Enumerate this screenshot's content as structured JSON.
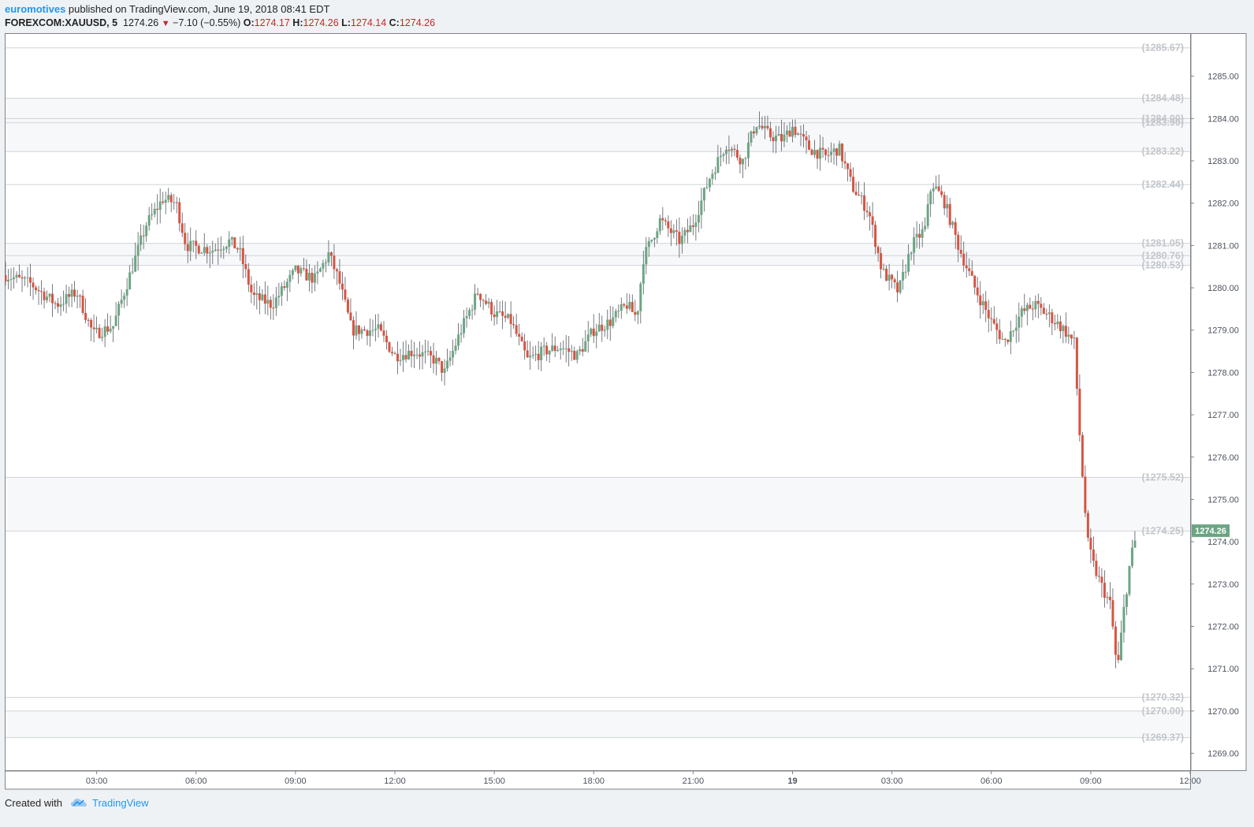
{
  "header": {
    "user": "euromotives",
    "published_text": " published on TradingView.com, June 19, 2018 08:41 EDT"
  },
  "legend": {
    "symbol": "FOREXCOM:XAUUSD, 5",
    "last": "1274.26",
    "change": "−7.10 (−0.55%)",
    "o_label": "O:",
    "o": "1274.17",
    "h_label": "H:",
    "h": "1274.26",
    "l_label": "L:",
    "l": "1274.14",
    "c_label": "C:",
    "c": "1274.26"
  },
  "footer": {
    "created_with": "Created with",
    "brand": "TradingView"
  },
  "colors": {
    "up": "#6ba583",
    "down": "#d75442",
    "accent": "#2196f3",
    "level_line": "#cfd3d7",
    "last_price_bg": "#6ba583"
  },
  "chart_data": {
    "type": "candlestick",
    "symbol": "FOREXCOM:XAUUSD",
    "timeframe": "5",
    "ylim": [
      1268.6,
      1286.0
    ],
    "y_ticks": [
      "1269.00",
      "1270.00",
      "1271.00",
      "1272.00",
      "1273.00",
      "1274.00",
      "1275.00",
      "1276.00",
      "1277.00",
      "1278.00",
      "1279.00",
      "1280.00",
      "1281.00",
      "1282.00",
      "1283.00",
      "1284.00",
      "1285.00"
    ],
    "x_ticks": [
      "03:00",
      "06:00",
      "09:00",
      "12:00",
      "15:00",
      "18:00",
      "21:00",
      "19",
      "03:00",
      "06:00",
      "09:00",
      "12:00"
    ],
    "x_tick_hours": [
      3,
      6,
      9,
      12,
      15,
      18,
      21,
      24,
      27,
      30,
      33,
      36
    ],
    "x_range_hours": [
      0.25,
      36.0
    ],
    "last_price": "1274.26",
    "levels": [
      "1285.67",
      "1284.48",
      "1284.00",
      "1283.90",
      "1283.22",
      "1282.44",
      "1281.05",
      "1280.76",
      "1280.53",
      "1275.52",
      "1274.25",
      "1270.32",
      "1270.00",
      "1269.37"
    ],
    "level_labels": [
      {
        "text": "(1285.67)",
        "value": 1285.67
      },
      {
        "text": "(1284.48)",
        "value": 1284.48
      },
      {
        "text": "(1284.00)",
        "value": 1284.0
      },
      {
        "text": "(1283.90)",
        "value": 1283.9
      },
      {
        "text": "(1283.22)",
        "value": 1283.22
      },
      {
        "text": "(1282.44)",
        "value": 1282.44
      },
      {
        "text": "(1281.05)",
        "value": 1281.05
      },
      {
        "text": "(1280.76)",
        "value": 1280.76
      },
      {
        "text": "(1280.53)",
        "value": 1280.53
      },
      {
        "text": "(1275.52)",
        "value": 1275.52
      },
      {
        "text": "(1274.25)",
        "value": 1274.25
      },
      {
        "text": "(1270.32)",
        "value": 1270.32
      },
      {
        "text": "(1270.00)",
        "value": 1270.0
      },
      {
        "text": "(1269.37)",
        "value": 1269.37
      }
    ],
    "close_path": [
      [
        0.25,
        1280.3
      ],
      [
        1.0,
        1280.1
      ],
      [
        1.8,
        1279.6
      ],
      [
        2.4,
        1279.9
      ],
      [
        2.9,
        1278.9
      ],
      [
        3.5,
        1279.1
      ],
      [
        4.0,
        1280.3
      ],
      [
        4.5,
        1281.5
      ],
      [
        5.0,
        1282.1
      ],
      [
        5.4,
        1282.0
      ],
      [
        5.7,
        1281.0
      ],
      [
        6.5,
        1280.9
      ],
      [
        7.0,
        1281.1
      ],
      [
        7.3,
        1280.9
      ],
      [
        7.7,
        1279.8
      ],
      [
        8.3,
        1279.6
      ],
      [
        9.0,
        1280.4
      ],
      [
        9.6,
        1280.2
      ],
      [
        10.0,
        1280.8
      ],
      [
        10.3,
        1280.2
      ],
      [
        10.7,
        1279.0
      ],
      [
        11.5,
        1279.0
      ],
      [
        12.0,
        1278.4
      ],
      [
        12.6,
        1278.5
      ],
      [
        13.2,
        1278.3
      ],
      [
        13.5,
        1278.0
      ],
      [
        14.0,
        1279.0
      ],
      [
        14.5,
        1279.9
      ],
      [
        15.0,
        1279.4
      ],
      [
        15.5,
        1279.2
      ],
      [
        16.0,
        1278.3
      ],
      [
        16.5,
        1278.5
      ],
      [
        17.0,
        1278.6
      ],
      [
        17.5,
        1278.4
      ],
      [
        18.0,
        1279.0
      ],
      [
        18.5,
        1279.2
      ],
      [
        19.0,
        1279.6
      ],
      [
        19.3,
        1279.3
      ],
      [
        19.5,
        1280.7
      ],
      [
        20.0,
        1281.6
      ],
      [
        20.6,
        1281.1
      ],
      [
        21.0,
        1281.5
      ],
      [
        21.5,
        1282.6
      ],
      [
        22.0,
        1283.4
      ],
      [
        22.5,
        1283.0
      ],
      [
        22.9,
        1283.9
      ],
      [
        23.3,
        1283.6
      ],
      [
        23.7,
        1283.5
      ],
      [
        24.0,
        1283.8
      ],
      [
        24.5,
        1283.3
      ],
      [
        25.0,
        1283.1
      ],
      [
        25.4,
        1283.3
      ],
      [
        25.8,
        1282.4
      ],
      [
        26.3,
        1281.8
      ],
      [
        26.7,
        1280.4
      ],
      [
        27.2,
        1279.9
      ],
      [
        27.6,
        1281.0
      ],
      [
        28.0,
        1281.4
      ],
      [
        28.2,
        1282.5
      ],
      [
        28.6,
        1282.0
      ],
      [
        29.0,
        1281.0
      ],
      [
        29.5,
        1280.0
      ],
      [
        30.0,
        1279.2
      ],
      [
        30.4,
        1278.7
      ],
      [
        30.9,
        1279.4
      ],
      [
        31.3,
        1279.6
      ],
      [
        31.8,
        1279.3
      ],
      [
        32.2,
        1279.0
      ],
      [
        32.5,
        1278.7
      ],
      [
        32.7,
        1276.1
      ],
      [
        32.9,
        1274.0
      ],
      [
        33.1,
        1273.4
      ],
      [
        33.3,
        1273.0
      ],
      [
        33.6,
        1272.5
      ],
      [
        33.8,
        1270.9
      ],
      [
        34.0,
        1272.4
      ],
      [
        34.2,
        1273.6
      ],
      [
        34.4,
        1274.2
      ]
    ]
  }
}
